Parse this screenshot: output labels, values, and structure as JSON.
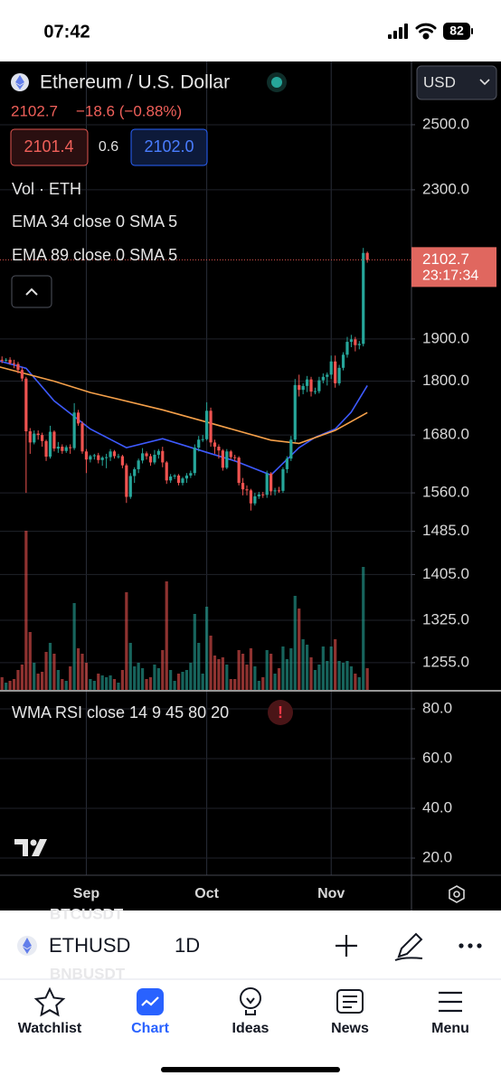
{
  "status_bar": {
    "time": "07:42",
    "battery": "82"
  },
  "header": {
    "symbol_name": "Ethereum / U.S. Dollar",
    "price": "2102.7",
    "change": "−18.6 (−0.88%)",
    "bid": "2101.4",
    "spread": "0.6",
    "ask": "2102.0",
    "volume_label": "Vol · ETH",
    "currency": "USD",
    "countdown": "23:17:34"
  },
  "chart_data": [
    {
      "type": "candlestick",
      "log_scale": true,
      "grid": true,
      "up_color": "#26a69a",
      "down_color": "#ef5350",
      "xlim": [
        0.5,
        103
      ],
      "xticks": [
        {
          "value": 22,
          "label": "Sep"
        },
        {
          "value": 52,
          "label": "Oct"
        },
        {
          "value": 83,
          "label": "Nov"
        }
      ],
      "ylim": [
        1212,
        2711
      ],
      "yticks": [
        {
          "value": 2500,
          "label": "2500.0"
        },
        {
          "value": 2300,
          "label": "2300.0"
        },
        {
          "value": 1900,
          "label": "1900.0"
        },
        {
          "value": 1800,
          "label": "1800.0"
        },
        {
          "value": 1680,
          "label": "1680.0"
        },
        {
          "value": 1560,
          "label": "1560.0"
        },
        {
          "value": 1485,
          "label": "1485.0"
        },
        {
          "value": 1405,
          "label": "1405.0"
        },
        {
          "value": 1325,
          "label": "1325.0"
        },
        {
          "value": 1255,
          "label": "1255.0"
        }
      ],
      "candles": [
        [
          1855,
          1862,
          1838,
          1850
        ],
        [
          1850,
          1858,
          1842,
          1848
        ],
        [
          1848,
          1854,
          1845,
          1850
        ],
        [
          1850,
          1856,
          1838,
          1842
        ],
        [
          1842,
          1850,
          1830,
          1840
        ],
        [
          1840,
          1845,
          1818,
          1826
        ],
        [
          1826,
          1832,
          1800,
          1806
        ],
        [
          1806,
          1810,
          1560,
          1688
        ],
        [
          1688,
          1695,
          1640,
          1664
        ],
        [
          1664,
          1690,
          1660,
          1683
        ],
        [
          1683,
          1690,
          1670,
          1680
        ],
        [
          1680,
          1685,
          1655,
          1667
        ],
        [
          1667,
          1670,
          1625,
          1634
        ],
        [
          1634,
          1700,
          1630,
          1687
        ],
        [
          1687,
          1690,
          1645,
          1651
        ],
        [
          1651,
          1665,
          1642,
          1655
        ],
        [
          1655,
          1660,
          1640,
          1646
        ],
        [
          1646,
          1658,
          1642,
          1654
        ],
        [
          1654,
          1660,
          1640,
          1652
        ],
        [
          1652,
          1750,
          1648,
          1729
        ],
        [
          1729,
          1735,
          1700,
          1705
        ],
        [
          1705,
          1710,
          1640,
          1645
        ],
        [
          1645,
          1650,
          1600,
          1628
        ],
        [
          1628,
          1638,
          1622,
          1635
        ],
        [
          1635,
          1640,
          1628,
          1637
        ],
        [
          1637,
          1642,
          1620,
          1627
        ],
        [
          1627,
          1635,
          1615,
          1632
        ],
        [
          1632,
          1640,
          1610,
          1633
        ],
        [
          1633,
          1650,
          1625,
          1645
        ],
        [
          1645,
          1648,
          1630,
          1635
        ],
        [
          1635,
          1640,
          1630,
          1635
        ],
        [
          1635,
          1638,
          1610,
          1616
        ],
        [
          1616,
          1620,
          1540,
          1552
        ],
        [
          1552,
          1600,
          1548,
          1594
        ],
        [
          1594,
          1612,
          1580,
          1608
        ],
        [
          1608,
          1630,
          1600,
          1626
        ],
        [
          1626,
          1652,
          1620,
          1641
        ],
        [
          1641,
          1645,
          1628,
          1635
        ],
        [
          1635,
          1640,
          1615,
          1622
        ],
        [
          1622,
          1648,
          1618,
          1638
        ],
        [
          1638,
          1650,
          1630,
          1646
        ],
        [
          1646,
          1655,
          1612,
          1622
        ],
        [
          1622,
          1625,
          1578,
          1585
        ],
        [
          1585,
          1598,
          1580,
          1593
        ],
        [
          1593,
          1598,
          1588,
          1595
        ],
        [
          1595,
          1598,
          1575,
          1580
        ],
        [
          1580,
          1592,
          1575,
          1589
        ],
        [
          1589,
          1600,
          1580,
          1595
        ],
        [
          1595,
          1605,
          1590,
          1600
        ],
        [
          1600,
          1660,
          1595,
          1653
        ],
        [
          1653,
          1678,
          1645,
          1670
        ],
        [
          1670,
          1680,
          1665,
          1671
        ],
        [
          1671,
          1752,
          1668,
          1733
        ],
        [
          1733,
          1740,
          1655,
          1664
        ],
        [
          1664,
          1670,
          1640,
          1655
        ],
        [
          1655,
          1660,
          1630,
          1647
        ],
        [
          1647,
          1650,
          1605,
          1611
        ],
        [
          1611,
          1650,
          1608,
          1645
        ],
        [
          1645,
          1648,
          1628,
          1633
        ],
        [
          1633,
          1638,
          1625,
          1632
        ],
        [
          1632,
          1635,
          1575,
          1580
        ],
        [
          1580,
          1590,
          1555,
          1567
        ],
        [
          1567,
          1575,
          1555,
          1565
        ],
        [
          1565,
          1568,
          1525,
          1539
        ],
        [
          1539,
          1560,
          1535,
          1553
        ],
        [
          1553,
          1562,
          1548,
          1557
        ],
        [
          1557,
          1562,
          1550,
          1556
        ],
        [
          1556,
          1605,
          1550,
          1599
        ],
        [
          1599,
          1602,
          1555,
          1563
        ],
        [
          1563,
          1570,
          1555,
          1565
        ],
        [
          1565,
          1572,
          1560,
          1564
        ],
        [
          1564,
          1612,
          1560,
          1608
        ],
        [
          1608,
          1635,
          1600,
          1630
        ],
        [
          1630,
          1678,
          1625,
          1670
        ],
        [
          1670,
          1805,
          1665,
          1791
        ],
        [
          1791,
          1815,
          1765,
          1780
        ],
        [
          1780,
          1795,
          1770,
          1789
        ],
        [
          1789,
          1812,
          1775,
          1804
        ],
        [
          1804,
          1810,
          1765,
          1776
        ],
        [
          1776,
          1785,
          1770,
          1777
        ],
        [
          1777,
          1810,
          1772,
          1802
        ],
        [
          1802,
          1818,
          1795,
          1810
        ],
        [
          1810,
          1820,
          1790,
          1815
        ],
        [
          1815,
          1860,
          1805,
          1846
        ],
        [
          1846,
          1860,
          1785,
          1795
        ],
        [
          1795,
          1838,
          1790,
          1831
        ],
        [
          1831,
          1868,
          1825,
          1862
        ],
        [
          1862,
          1905,
          1855,
          1893
        ],
        [
          1893,
          1910,
          1880,
          1899
        ],
        [
          1899,
          1905,
          1870,
          1885
        ],
        [
          1885,
          1895,
          1875,
          1888
        ],
        [
          1888,
          2135,
          1882,
          2121.3
        ],
        [
          2121.3,
          2125,
          2095,
          2102.7
        ]
      ],
      "volume": {
        "ylim": [
          0,
          1000
        ],
        "values": [
          90,
          70,
          40,
          50,
          60,
          110,
          140,
          880,
          320,
          150,
          90,
          100,
          210,
          260,
          200,
          110,
          60,
          50,
          130,
          480,
          230,
          200,
          150,
          60,
          50,
          90,
          80,
          70,
          80,
          60,
          40,
          110,
          540,
          260,
          130,
          150,
          120,
          60,
          70,
          140,
          120,
          220,
          600,
          110,
          50,
          90,
          100,
          110,
          150,
          420,
          260,
          90,
          460,
          300,
          190,
          170,
          180,
          140,
          60,
          60,
          220,
          200,
          140,
          230,
          130,
          50,
          70,
          220,
          200,
          90,
          120,
          240,
          170,
          230,
          520,
          450,
          280,
          250,
          180,
          110,
          140,
          240,
          160,
          240,
          280,
          160,
          150,
          160,
          130,
          90,
          70,
          680,
          120
        ]
      },
      "series": [
        {
          "name": "EMA 34 close 0 SMA 5",
          "color": "#3d5afe",
          "x": [
            0,
            7,
            14,
            23,
            32,
            41,
            52,
            59,
            68,
            75,
            79,
            84,
            88,
            92
          ],
          "values": [
            1848,
            1830,
            1755,
            1693,
            1653,
            1672,
            1643,
            1625,
            1596,
            1653,
            1675,
            1693,
            1730,
            1790
          ]
        },
        {
          "name": "EMA 89 close 0 SMA 5",
          "color": "#f5a04a",
          "x": [
            0,
            14,
            23,
            41,
            52,
            68,
            75,
            84,
            92
          ],
          "values": [
            1834,
            1800,
            1774,
            1735,
            1708,
            1669,
            1662,
            1690,
            1729
          ]
        }
      ]
    },
    {
      "type": "indicator",
      "title": "WMA RSI close 14 9 45 80 20",
      "grid": true,
      "ylim": [
        13.1,
        86.9
      ],
      "yticks": [
        {
          "value": 80,
          "label": "80.0"
        },
        {
          "value": 60,
          "label": "60.0"
        },
        {
          "value": 40,
          "label": "40.0"
        },
        {
          "value": 20,
          "label": "20.0"
        }
      ]
    }
  ],
  "toolbar": {
    "symbol": "ETHUSD",
    "interval": "1D",
    "ghost_symbols": [
      "BTCUSDT",
      "BNBUSDT"
    ]
  },
  "tabs": [
    "Watchlist",
    "Chart",
    "Ideas",
    "News",
    "Menu"
  ]
}
